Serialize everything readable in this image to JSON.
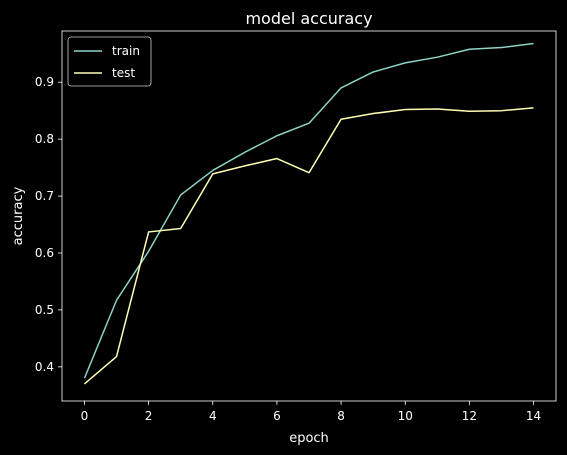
{
  "chart_data": {
    "type": "line",
    "title": "model accuracy",
    "xlabel": "epoch",
    "ylabel": "accuracy",
    "x": [
      0,
      1,
      2,
      3,
      4,
      5,
      6,
      7,
      8,
      9,
      10,
      11,
      12,
      13,
      14
    ],
    "xlim": [
      -0.7,
      14.7
    ],
    "ylim": [
      0.34,
      0.99
    ],
    "xticks": [
      0,
      2,
      4,
      6,
      8,
      10,
      12,
      14
    ],
    "yticks": [
      0.4,
      0.5,
      0.6,
      0.7,
      0.8,
      0.9
    ],
    "grid": false,
    "legend_position": "top-left",
    "series": [
      {
        "name": "train",
        "color": "#8dd3c7",
        "values": [
          0.38,
          0.517,
          0.603,
          0.702,
          0.745,
          0.777,
          0.806,
          0.828,
          0.89,
          0.918,
          0.934,
          0.944,
          0.958,
          0.961,
          0.968
        ]
      },
      {
        "name": "test",
        "color": "#ffffb3",
        "values": [
          0.37,
          0.418,
          0.637,
          0.643,
          0.739,
          0.753,
          0.766,
          0.741,
          0.835,
          0.845,
          0.852,
          0.853,
          0.849,
          0.85,
          0.855
        ]
      }
    ]
  }
}
